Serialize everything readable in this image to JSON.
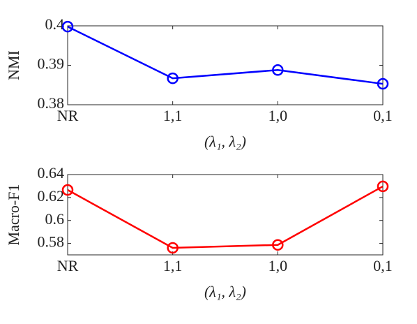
{
  "chart_data": [
    {
      "type": "line",
      "categories": [
        "NR",
        "1,1",
        "1,0",
        "0,1"
      ],
      "xlabel": "(λ₁, λ₂)",
      "ylabel": "NMI",
      "series": [
        {
          "color": "#0000ff",
          "values": [
            0.3998,
            0.3867,
            0.3888,
            0.3853
          ]
        }
      ],
      "ylim": [
        0.38,
        0.4
      ],
      "yticks": [
        0.38,
        0.39,
        0.4
      ]
    },
    {
      "type": "line",
      "categories": [
        "NR",
        "1,1",
        "1,0",
        "0,1"
      ],
      "xlabel": "(λ₁, λ₂)",
      "ylabel": "Macro-F1",
      "series": [
        {
          "color": "#ff0000",
          "values": [
            0.6266,
            0.5761,
            0.5787,
            0.6297
          ]
        }
      ],
      "ylim": [
        0.57,
        0.64
      ],
      "yticks": [
        0.58,
        0.6,
        0.62,
        0.64
      ]
    }
  ]
}
